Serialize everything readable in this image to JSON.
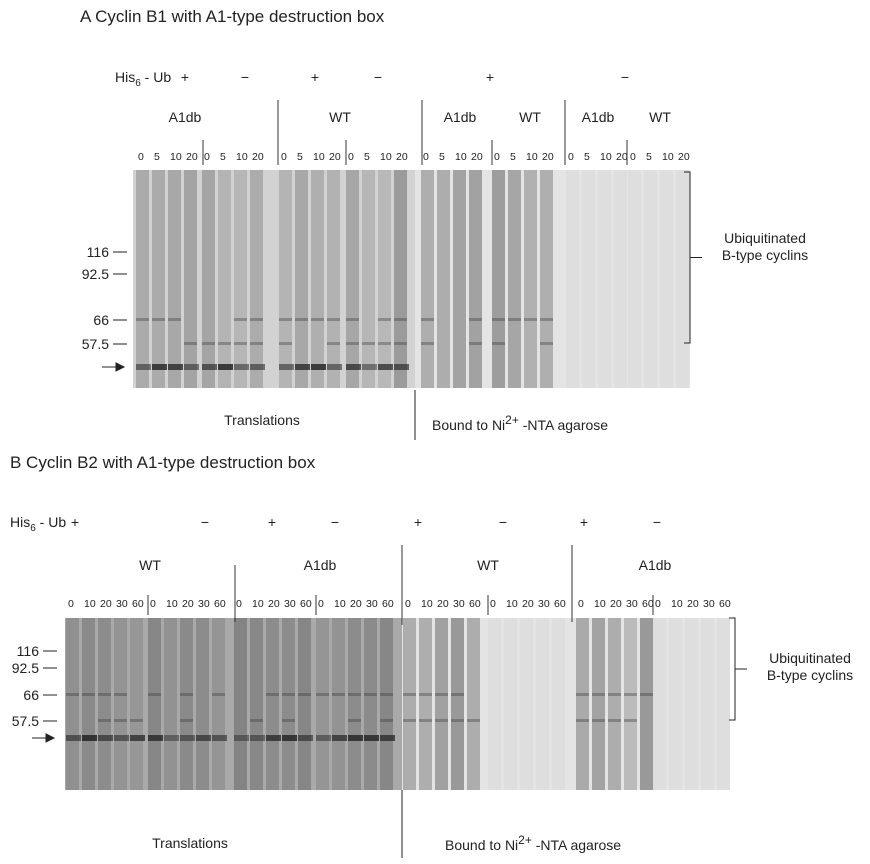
{
  "panels": [
    {
      "title": "A  Cyclin B1 with A1-type destruction box",
      "his_label": {
        "text": "His",
        "sub": "6",
        "rest": " - Ub"
      },
      "signs": [
        "+",
        "−",
        "+",
        "−",
        "+",
        "−"
      ],
      "groups": [
        "A1db",
        "WT",
        "A1db",
        "WT",
        "A1db",
        "WT"
      ],
      "lanes": [
        [
          0,
          5,
          10,
          20
        ],
        [
          0,
          5,
          10,
          20
        ],
        [
          0,
          5,
          10,
          20
        ],
        [
          0,
          5,
          10,
          20
        ],
        [
          0,
          5,
          10,
          20
        ],
        [
          0,
          5,
          10,
          20
        ],
        [
          0,
          5,
          10,
          20
        ],
        [
          0,
          5,
          10,
          20
        ]
      ],
      "markers": [
        116,
        92.5,
        66,
        57.5
      ],
      "bracket_label": [
        "Ubiquitinated",
        "B-type cyclins"
      ],
      "bottom_left": "Translations",
      "bottom_right": {
        "text": "Bound to Ni",
        "sup": "2+",
        "rest": " -NTA agarose"
      }
    },
    {
      "title": "B  Cyclin B2 with A1-type destruction box",
      "his_label": {
        "text": "His",
        "sub": "6",
        "rest": " - Ub"
      },
      "signs": [
        "+",
        "−",
        "+",
        "−",
        "+",
        "−",
        "+",
        "−"
      ],
      "groups": [
        "WT",
        "A1db",
        "WT",
        "A1db"
      ],
      "lanes": [
        [
          0,
          10,
          20,
          30,
          60
        ],
        [
          0,
          10,
          20,
          30,
          60
        ],
        [
          0,
          10,
          20,
          30,
          60
        ],
        [
          0,
          10,
          20,
          30,
          60
        ],
        [
          0,
          10,
          20,
          30,
          60
        ],
        [
          0,
          10,
          20,
          30,
          60
        ],
        [
          0,
          10,
          20,
          30,
          60
        ],
        [
          0,
          10,
          20,
          30,
          60
        ]
      ],
      "markers": [
        116,
        92.5,
        66,
        57.5
      ],
      "bracket_label": [
        "Ubiquitinated",
        "B-type cyclins"
      ],
      "bottom_left": "Translations",
      "bottom_right": {
        "text": "Bound to Ni",
        "sup": "2+",
        "rest": " -NTA agarose"
      }
    }
  ]
}
